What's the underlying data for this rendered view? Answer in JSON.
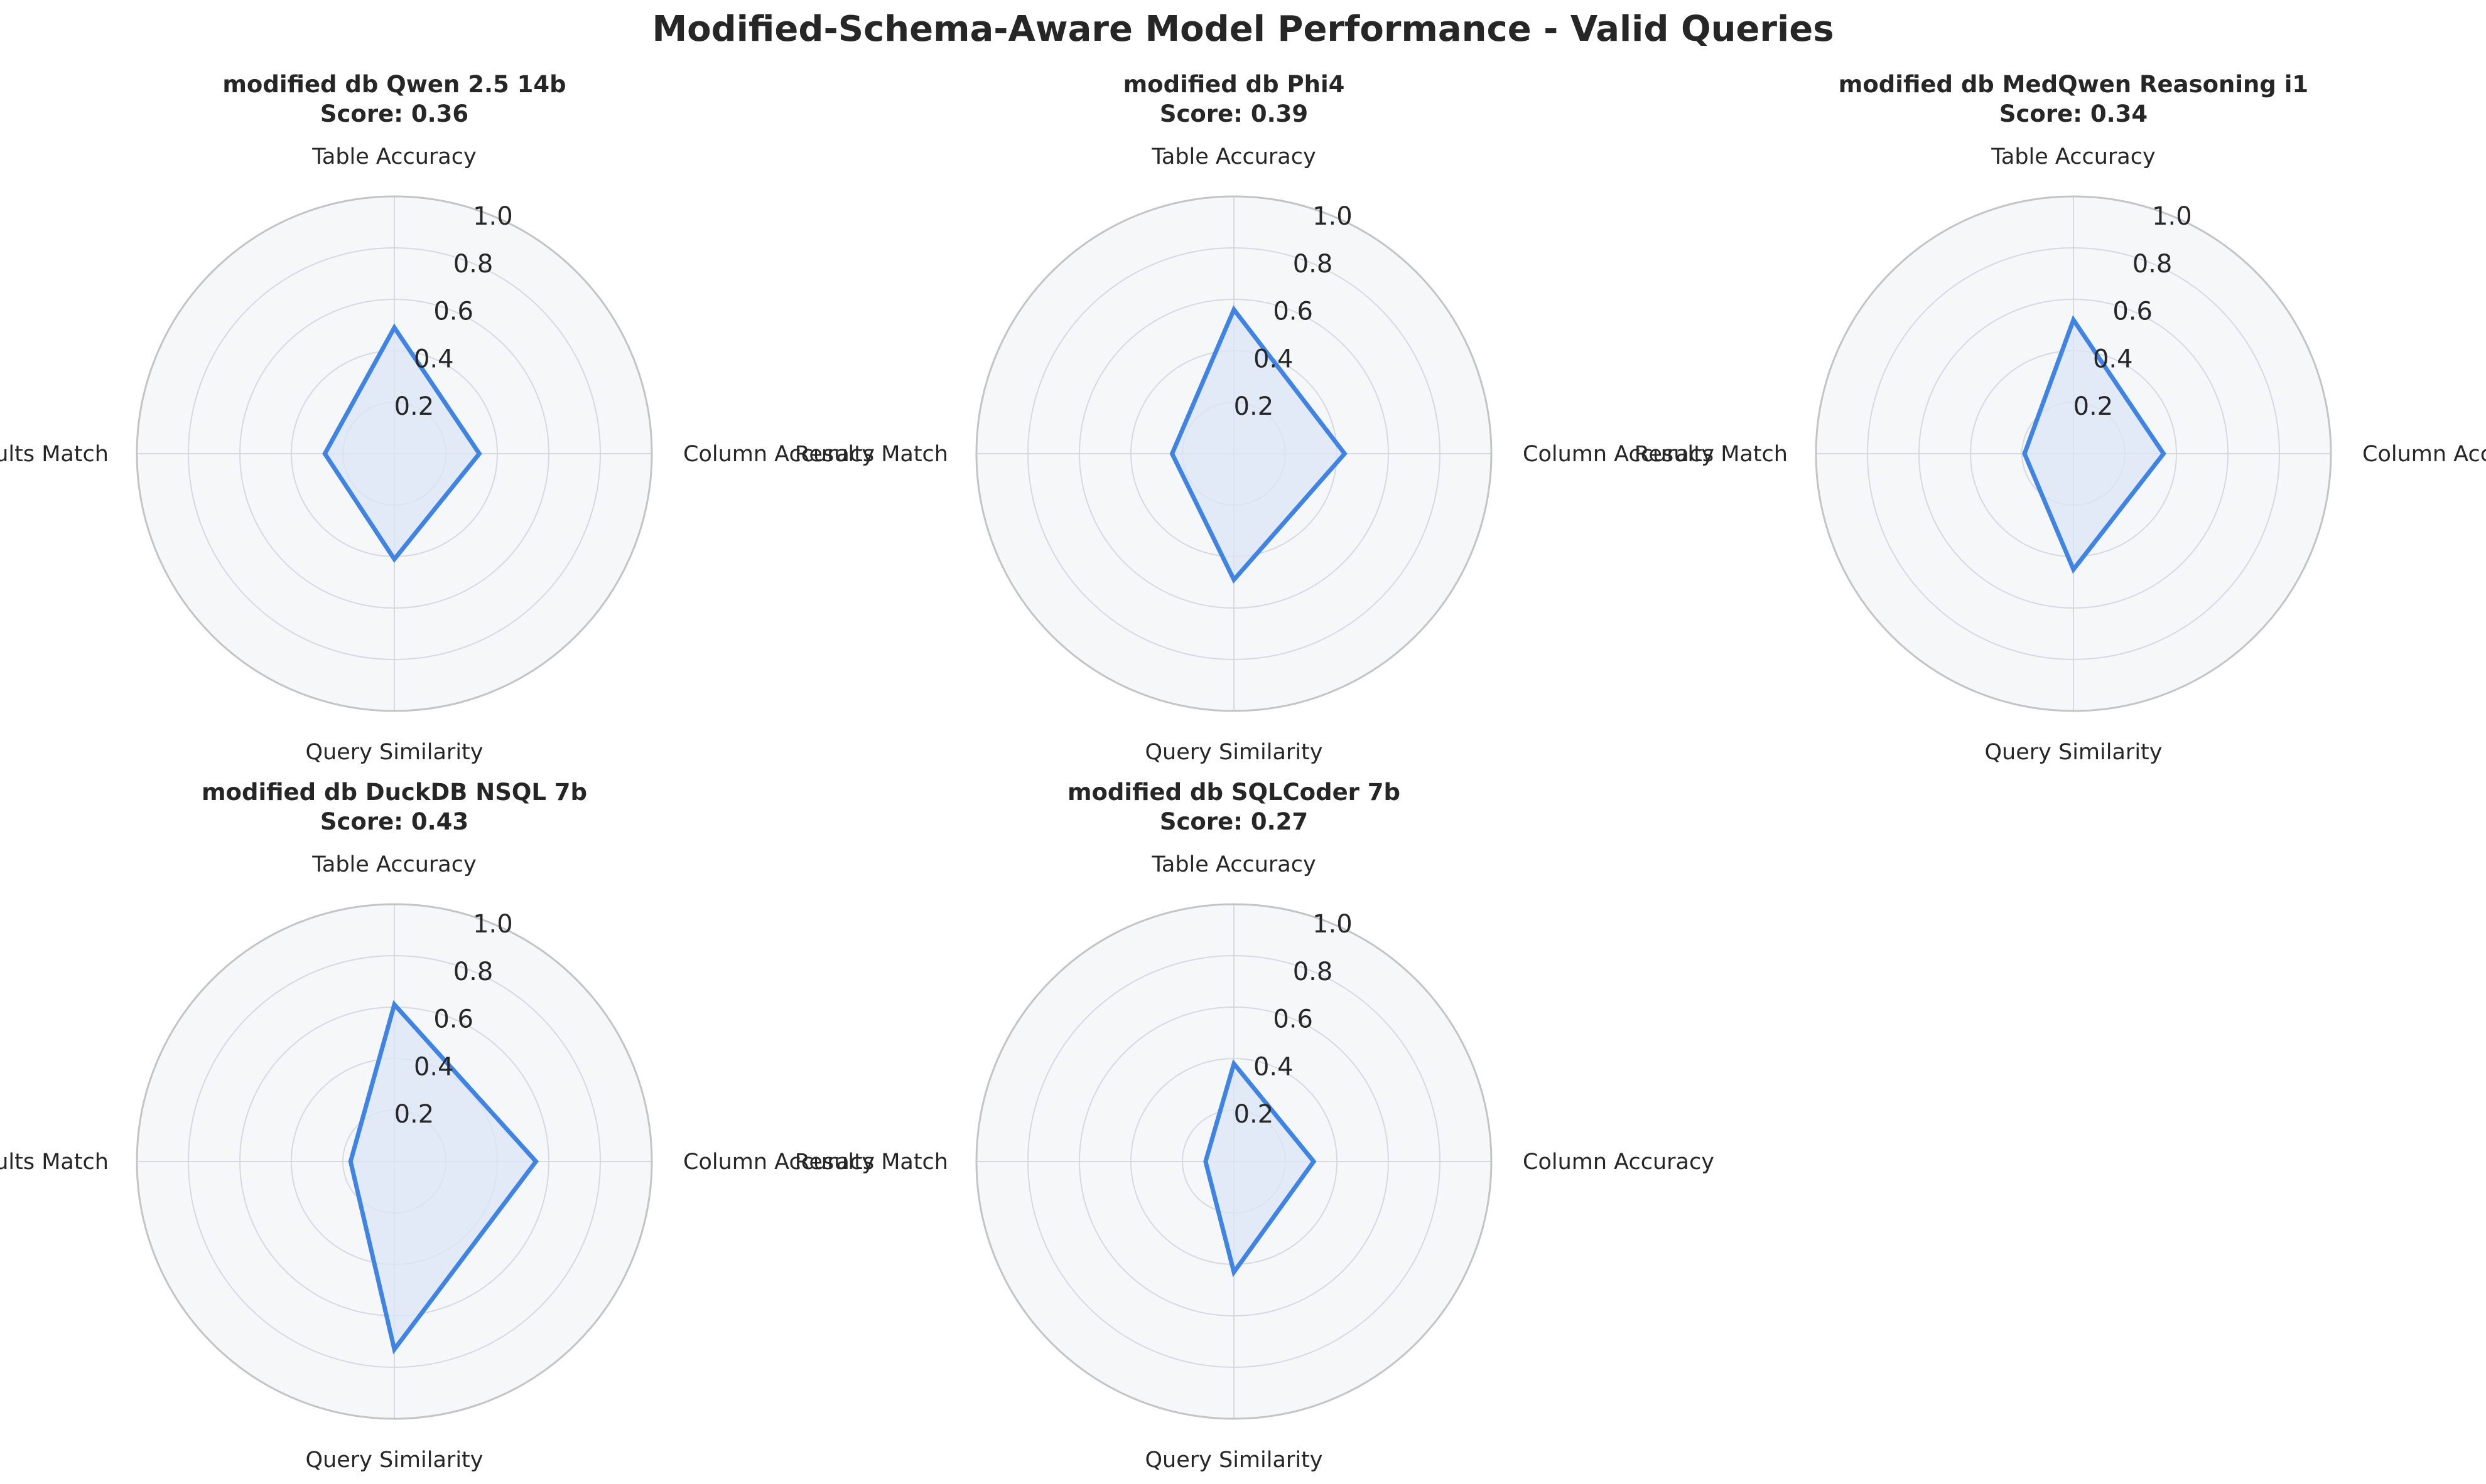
{
  "title": "Modified-Schema-Aware Model Performance - Valid Queries",
  "colors": {
    "series": "#3f84e5",
    "fill": "#dbe6f6",
    "background": "#f6f7f9",
    "grid": "#d6d9de",
    "spine": "#c4c4c4"
  },
  "chart_data": [
    {
      "type": "radar",
      "title": "modified db Qwen 2.5 14b",
      "score_label": "Score: 0.36",
      "axes": [
        "Table Accuracy",
        "Column Accuracy",
        "Query Similarity",
        "Results Match"
      ],
      "values": [
        0.49,
        0.33,
        0.41,
        0.27
      ],
      "rlim": [
        0,
        1.0
      ],
      "rticks": [
        "0.2",
        "0.4",
        "0.6",
        "0.8",
        "1.0"
      ],
      "rtick_values": [
        0.2,
        0.4,
        0.6,
        0.8,
        1.0
      ]
    },
    {
      "type": "radar",
      "title": "modified db Phi4",
      "score_label": "Score: 0.39",
      "axes": [
        "Table Accuracy",
        "Column Accuracy",
        "Query Similarity",
        "Results Match"
      ],
      "values": [
        0.56,
        0.43,
        0.49,
        0.24
      ],
      "rlim": [
        0,
        1.0
      ],
      "rticks": [
        "0.2",
        "0.4",
        "0.6",
        "0.8",
        "1.0"
      ],
      "rtick_values": [
        0.2,
        0.4,
        0.6,
        0.8,
        1.0
      ]
    },
    {
      "type": "radar",
      "title": "modified db MedQwen Reasoning i1",
      "score_label": "Score: 0.34",
      "axes": [
        "Table Accuracy",
        "Column Accuracy",
        "Query Similarity",
        "Results Match"
      ],
      "values": [
        0.52,
        0.35,
        0.45,
        0.19
      ],
      "rlim": [
        0,
        1.0
      ],
      "rticks": [
        "0.2",
        "0.4",
        "0.6",
        "0.8",
        "1.0"
      ],
      "rtick_values": [
        0.2,
        0.4,
        0.6,
        0.8,
        1.0
      ]
    },
    {
      "type": "radar",
      "title": "modified db DuckDB NSQL 7b",
      "score_label": "Score: 0.43",
      "axes": [
        "Table Accuracy",
        "Column Accuracy",
        "Query Similarity",
        "Results Match"
      ],
      "values": [
        0.61,
        0.55,
        0.73,
        0.17
      ],
      "rlim": [
        0,
        1.0
      ],
      "rticks": [
        "0.2",
        "0.4",
        "0.6",
        "0.8",
        "1.0"
      ],
      "rtick_values": [
        0.2,
        0.4,
        0.6,
        0.8,
        1.0
      ]
    },
    {
      "type": "radar",
      "title": "modified db SQLCoder 7b",
      "score_label": "Score: 0.27",
      "axes": [
        "Table Accuracy",
        "Column Accuracy",
        "Query Similarity",
        "Results Match"
      ],
      "values": [
        0.38,
        0.31,
        0.43,
        0.11
      ],
      "rlim": [
        0,
        1.0
      ],
      "rticks": [
        "0.2",
        "0.4",
        "0.6",
        "0.8",
        "1.0"
      ],
      "rtick_values": [
        0.2,
        0.4,
        0.6,
        0.8,
        1.0
      ]
    }
  ]
}
